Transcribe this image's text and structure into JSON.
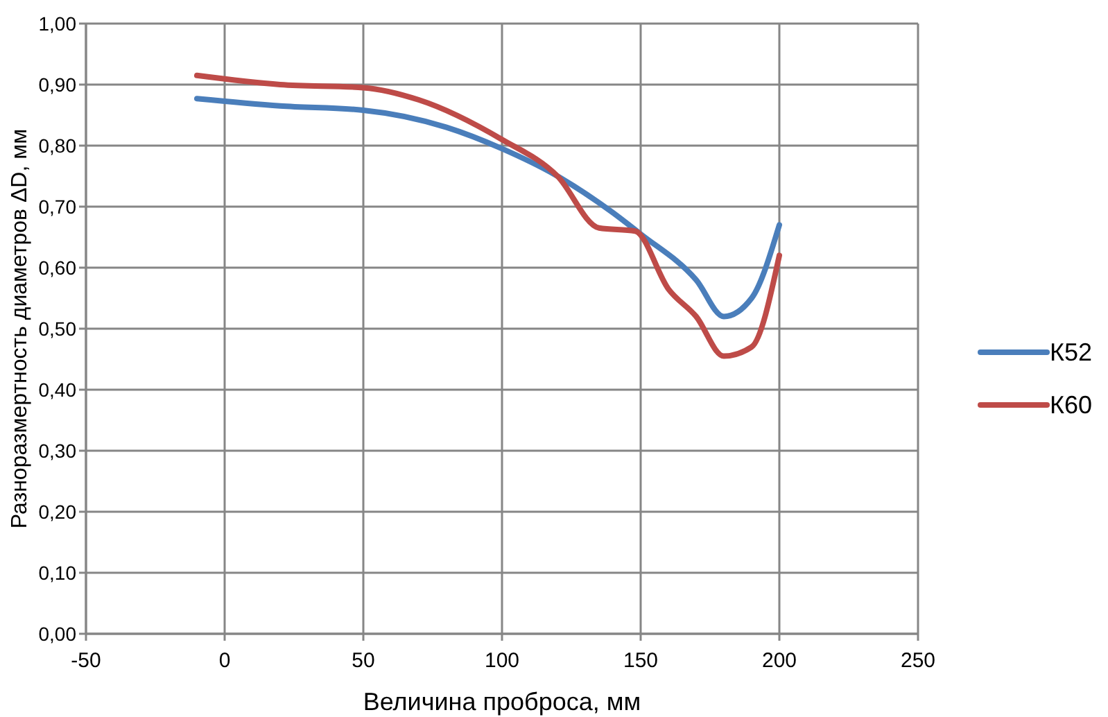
{
  "chart_data": {
    "type": "line",
    "xlabel": "Величина проброса, мм",
    "ylabel": "Разноразмертность диаметров ΔD, мм",
    "xlim": [
      -50,
      250
    ],
    "xticks": [
      -50,
      0,
      50,
      100,
      150,
      200,
      250
    ],
    "ylim": [
      0,
      1
    ],
    "yticks": [
      {
        "value": 0,
        "label": "0,00"
      },
      {
        "value": 0.1,
        "label": "0,10"
      },
      {
        "value": 0.2,
        "label": "0,20"
      },
      {
        "value": 0.3,
        "label": "0,30"
      },
      {
        "value": 0.4,
        "label": "0,40"
      },
      {
        "value": 0.5,
        "label": "0,50"
      },
      {
        "value": 0.6,
        "label": "0,60"
      },
      {
        "value": 0.7,
        "label": "0,70"
      },
      {
        "value": 0.8,
        "label": "0,80"
      },
      {
        "value": 0.9,
        "label": "0,90"
      },
      {
        "value": 1,
        "label": "1,00"
      }
    ],
    "grid": true,
    "legend": "right",
    "marker": "none",
    "line_style": "solid",
    "series": [
      {
        "name": "К52",
        "color": "#4a7ebb",
        "x": [
          -10,
          20,
          50,
          80,
          100,
          120,
          140,
          150,
          170,
          180,
          190,
          200
        ],
        "values": [
          0.877,
          0.865,
          0.858,
          0.83,
          0.795,
          0.75,
          0.69,
          0.655,
          0.58,
          0.52,
          0.55,
          0.67
        ]
      },
      {
        "name": "К60",
        "color": "#be4b48",
        "x": [
          -10,
          20,
          50,
          70,
          100,
          120,
          135,
          148,
          160,
          170,
          180,
          190,
          200
        ],
        "values": [
          0.915,
          0.9,
          0.895,
          0.875,
          0.81,
          0.75,
          0.665,
          0.66,
          0.565,
          0.52,
          0.455,
          0.47,
          0.62
        ]
      }
    ]
  }
}
